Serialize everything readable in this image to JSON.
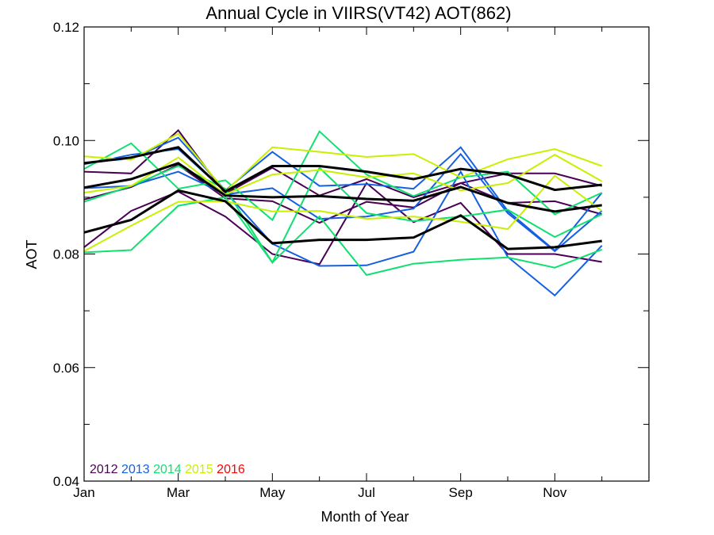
{
  "chart_data": {
    "type": "line",
    "title": "Annual Cycle in VIIRS(VT42) AOT(862)",
    "xlabel": "Month of Year",
    "ylabel": "AOT",
    "x": [
      1,
      2,
      3,
      4,
      5,
      6,
      7,
      8,
      9,
      10,
      11,
      12
    ],
    "xlim": [
      1,
      13
    ],
    "ylim": [
      0.04,
      0.12
    ],
    "xticks": [
      1,
      3,
      5,
      7,
      9,
      11
    ],
    "xticklabels": [
      "Jan",
      "Mar",
      "May",
      "Jul",
      "Sep",
      "Nov"
    ],
    "yticks": [
      0.04,
      0.06,
      0.08,
      0.1,
      0.12
    ],
    "yticklabels": [
      "0.04",
      "0.06",
      "0.08",
      "0.10",
      "0.12"
    ],
    "legend_placement": "bottom-left",
    "legend": [
      {
        "label": "2012",
        "color": "#4b0055"
      },
      {
        "label": "2013",
        "color": "#1560e0"
      },
      {
        "label": "2014",
        "color": "#10e070"
      },
      {
        "label": "2015",
        "color": "#c8f000"
      },
      {
        "label": "2016",
        "color": "#ff0000"
      }
    ],
    "series": [
      {
        "color": "#4b0055",
        "width": 2,
        "values": [
          0.0812,
          0.0876,
          0.091,
          0.0866,
          0.08,
          0.0782,
          0.0925,
          0.0856,
          0.089,
          0.08,
          0.08,
          0.0786
        ]
      },
      {
        "color": "#4b0055",
        "width": 2,
        "values": [
          0.0945,
          0.0942,
          0.1018,
          0.0906,
          0.0952,
          0.0903,
          0.0932,
          0.09,
          0.0925,
          0.0942,
          0.0942,
          0.092
        ]
      },
      {
        "color": "#4b0055",
        "width": 2,
        "values": [
          0.0896,
          0.0918,
          0.0957,
          0.0898,
          0.0893,
          0.0855,
          0.0892,
          0.0882,
          0.0925,
          0.089,
          0.0893,
          0.087
        ]
      },
      {
        "color": "#1560e0",
        "width": 2,
        "values": [
          0.0961,
          0.0968,
          0.1005,
          0.0912,
          0.098,
          0.092,
          0.0923,
          0.0915,
          0.0988,
          0.0876,
          0.0806,
          0.0908
        ]
      },
      {
        "color": "#1560e0",
        "width": 2,
        "values": [
          0.0916,
          0.092,
          0.0945,
          0.0905,
          0.0916,
          0.0862,
          0.0866,
          0.088,
          0.0976,
          0.0872,
          0.0805,
          0.0876
        ]
      },
      {
        "color": "#1560e0",
        "width": 2,
        "values": [
          0.0958,
          0.0975,
          0.0985,
          0.091,
          0.0818,
          0.0779,
          0.078,
          0.0804,
          0.0945,
          0.0795,
          0.0727,
          0.0815
        ]
      },
      {
        "color": "#10e070",
        "width": 2,
        "values": [
          0.095,
          0.0995,
          0.0915,
          0.093,
          0.086,
          0.1016,
          0.094,
          0.0902,
          0.0935,
          0.0945,
          0.087,
          0.0908
        ]
      },
      {
        "color": "#10e070",
        "width": 2,
        "values": [
          0.0892,
          0.092,
          0.0955,
          0.0915,
          0.0785,
          0.0952,
          0.0872,
          0.0858,
          0.0866,
          0.0878,
          0.083,
          0.087
        ]
      },
      {
        "color": "#10e070",
        "width": 2,
        "values": [
          0.0803,
          0.0807,
          0.0885,
          0.09,
          0.0785,
          0.0866,
          0.0763,
          0.0783,
          0.079,
          0.0794,
          0.0776,
          0.0808
        ]
      },
      {
        "color": "#c8f000",
        "width": 2,
        "values": [
          0.0972,
          0.0966,
          0.1012,
          0.091,
          0.0988,
          0.098,
          0.0971,
          0.0976,
          0.0935,
          0.0967,
          0.0985,
          0.0955
        ]
      },
      {
        "color": "#c8f000",
        "width": 2,
        "values": [
          0.0908,
          0.092,
          0.097,
          0.0905,
          0.094,
          0.0948,
          0.0935,
          0.0942,
          0.0912,
          0.0925,
          0.0975,
          0.0928
        ]
      },
      {
        "color": "#c8f000",
        "width": 2,
        "values": [
          0.0805,
          0.085,
          0.0892,
          0.0893,
          0.0875,
          0.0876,
          0.0862,
          0.0866,
          0.0857,
          0.0844,
          0.0938,
          0.0876
        ]
      },
      {
        "color": "#000000",
        "width": 3,
        "values": [
          0.096,
          0.097,
          0.0988,
          0.091,
          0.0955,
          0.0955,
          0.0945,
          0.0932,
          0.095,
          0.094,
          0.0913,
          0.0922
        ]
      },
      {
        "color": "#000000",
        "width": 3,
        "values": [
          0.0917,
          0.0932,
          0.096,
          0.0903,
          0.09,
          0.0902,
          0.0897,
          0.0894,
          0.0918,
          0.089,
          0.0875,
          0.0886
        ]
      },
      {
        "color": "#000000",
        "width": 3,
        "values": [
          0.0838,
          0.086,
          0.0912,
          0.0893,
          0.0819,
          0.0825,
          0.0825,
          0.0829,
          0.0868,
          0.0809,
          0.0812,
          0.0823
        ]
      }
    ]
  }
}
